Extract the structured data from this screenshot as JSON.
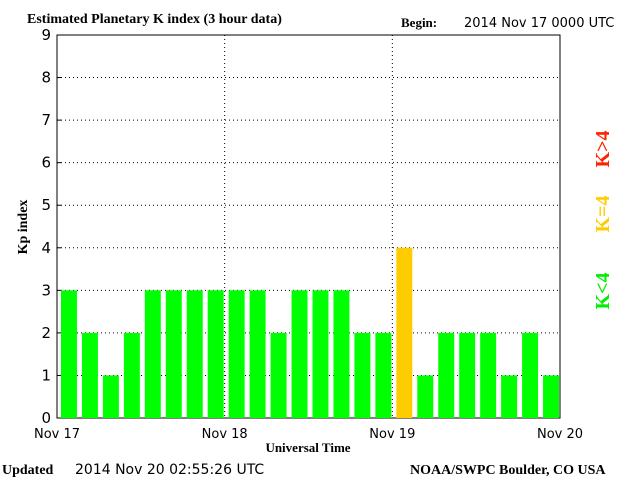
{
  "header": {
    "title": "Estimated Planetary K index (3 hour data)",
    "begin_label": "Begin:",
    "begin_value": "2014 Nov 17 0000 UTC"
  },
  "footer": {
    "updated_label": "Updated",
    "updated_value": "2014 Nov 20 02:55:26 UTC",
    "source": "NOAA/SWPC Boulder, CO USA"
  },
  "legend": {
    "low": {
      "text": "K<4",
      "color": "#00ff00"
    },
    "mid": {
      "text": "K=4",
      "color": "#ffcc00"
    },
    "high": {
      "text": "K>4",
      "color": "#ff0000"
    }
  },
  "chart_data": {
    "type": "bar",
    "xlabel": "Universal Time",
    "ylabel": "Kp index",
    "ylim": [
      0,
      9
    ],
    "yticks": [
      0,
      1,
      2,
      3,
      4,
      5,
      6,
      7,
      8,
      9
    ],
    "x_tick_labels": [
      "Nov 17",
      "Nov 18",
      "Nov 19",
      "Nov 20"
    ],
    "interval_hours": 3,
    "values": [
      3,
      2,
      1,
      2,
      3,
      3,
      3,
      3,
      3,
      3,
      2,
      3,
      3,
      3,
      2,
      2,
      4,
      1,
      2,
      2,
      2,
      1,
      2,
      1
    ],
    "grid": true
  }
}
